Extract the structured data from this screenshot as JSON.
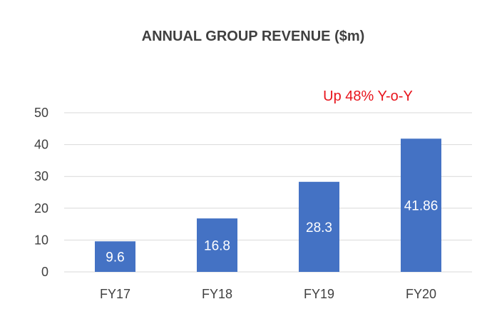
{
  "chart_data": {
    "type": "bar",
    "title": "ANNUAL GROUP REVENUE ($m)",
    "categories": [
      "FY17",
      "FY18",
      "FY19",
      "FY20"
    ],
    "values": [
      9.6,
      16.8,
      28.3,
      41.86
    ],
    "value_labels": [
      "9.6",
      "16.8",
      "28.3",
      "41.86"
    ],
    "yticks": [
      "0",
      "10",
      "20",
      "30",
      "40",
      "50"
    ],
    "ylim": [
      0,
      50
    ],
    "grid": true,
    "bar_color": "#4472c4",
    "annotation": "Up 48% Y-o-Y",
    "annotation_color": "#e8141c"
  }
}
